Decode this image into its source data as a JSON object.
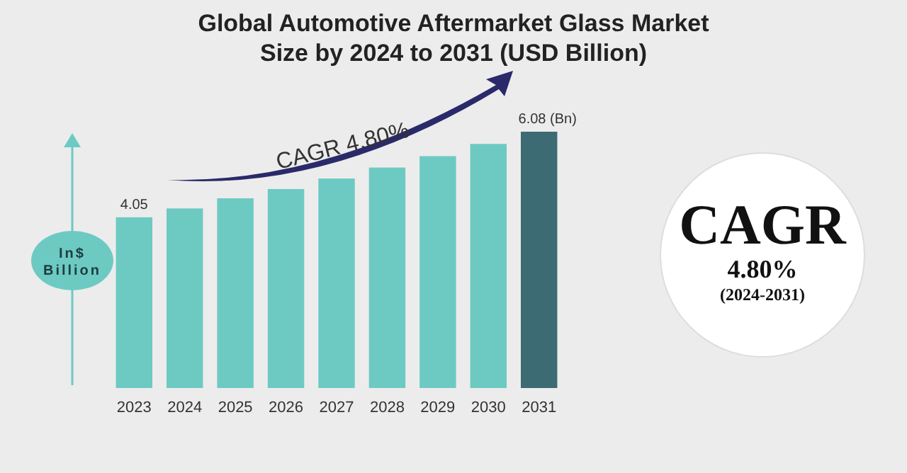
{
  "chart_data": {
    "type": "bar",
    "title": "Global Automotive Aftermarket Glass Market Size by 2024 to 2031 (USD Billion)",
    "ylabel": "In$ Billion",
    "categories": [
      "2023",
      "2024",
      "2025",
      "2026",
      "2027",
      "2028",
      "2029",
      "2030",
      "2031"
    ],
    "values": [
      4.05,
      4.26,
      4.5,
      4.72,
      4.97,
      5.23,
      5.5,
      5.79,
      6.08
    ],
    "colors": [
      "#6dcac3",
      "#6dcac3",
      "#6dcac3",
      "#6dcac3",
      "#6dcac3",
      "#6dcac3",
      "#6dcac3",
      "#6dcac3",
      "#3d6b73"
    ],
    "value_labels": [
      "4.05",
      null,
      null,
      null,
      null,
      null,
      null,
      null,
      "6.08 (Bn)"
    ],
    "annotations": [
      "CAGR 4.80%",
      "CAGR",
      "4.80%",
      "(2024-2031)"
    ]
  }
}
